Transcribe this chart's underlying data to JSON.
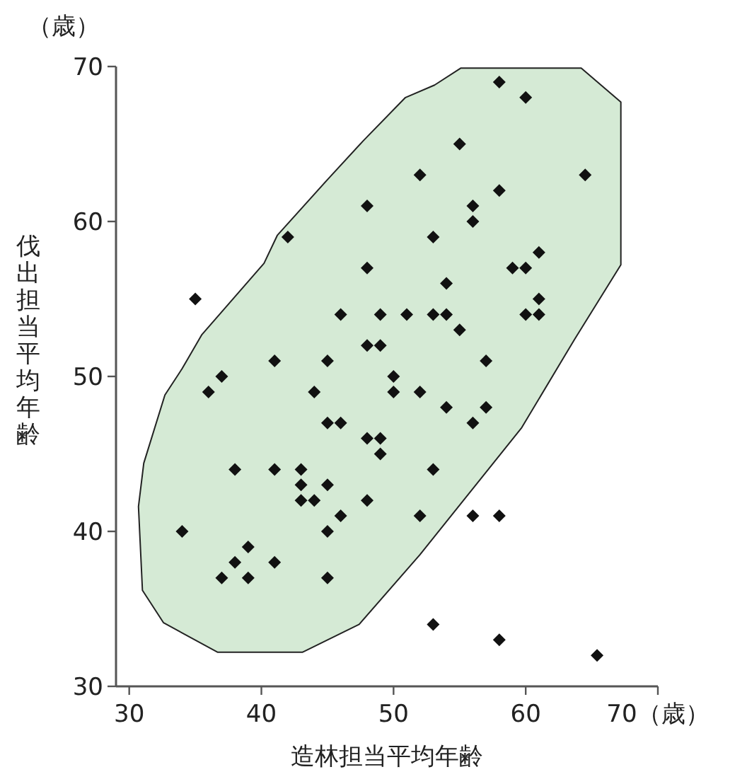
{
  "chart_data": {
    "type": "scatter",
    "xlabel": "造林担当平均年齢",
    "ylabel": "伐出担当平均年齢",
    "annotations": [
      "（歳）"
    ],
    "xlim": [
      29,
      70
    ],
    "xticks": [
      30,
      40,
      50,
      60,
      {
        "value": 70,
        "label": "70（歳）"
      }
    ],
    "ylim": [
      30,
      70
    ],
    "yticks": [
      30,
      40,
      50,
      60,
      70
    ],
    "grid": false,
    "series": [
      {
        "type": "area",
        "color": "#d5ead5",
        "x": [
          55.1,
          64.2,
          67.2,
          67.2,
          63.7,
          59.7,
          52.0,
          47.4,
          43.1,
          36.7,
          32.6,
          31.0,
          30.7,
          31.1,
          32.7,
          34.0,
          35.5,
          40.2,
          41.2,
          45.0,
          47.7,
          50.9,
          53.1
        ],
        "values": [
          69.9,
          69.9,
          67.7,
          57.2,
          52.4,
          46.7,
          38.5,
          34.0,
          32.2,
          32.2,
          34.1,
          36.2,
          41.6,
          44.4,
          48.8,
          50.5,
          52.7,
          57.3,
          59.1,
          62.7,
          65.2,
          68.0,
          68.8
        ]
      },
      {
        "marker": "diamond",
        "color": "#111111",
        "x": [
          58,
          60,
          55,
          52,
          64.5,
          58,
          48,
          56,
          56,
          42,
          53,
          61,
          48,
          59,
          60,
          54,
          35,
          61,
          46,
          49,
          51,
          53,
          54,
          60,
          61,
          55,
          48,
          49,
          41,
          45,
          57,
          36,
          37,
          44,
          50,
          50,
          52,
          54,
          57,
          45,
          46,
          56,
          48,
          49,
          49,
          38,
          41,
          43,
          53,
          43,
          45,
          43,
          44,
          48,
          46,
          52,
          56,
          58,
          34,
          45,
          39,
          38,
          41,
          37,
          39,
          45,
          53,
          58,
          65.4
        ],
        "values": [
          69,
          68,
          65,
          63,
          63,
          62,
          61,
          61,
          60,
          59,
          59,
          58,
          57,
          57,
          57,
          56,
          55,
          55,
          54,
          54,
          54,
          54,
          54,
          54,
          54,
          53,
          52,
          52,
          51,
          51,
          51,
          49,
          50,
          49,
          50,
          49,
          49,
          48,
          48,
          47,
          47,
          47,
          46,
          46,
          45,
          44,
          44,
          44,
          44,
          43,
          43,
          42,
          42,
          42,
          41,
          41,
          41,
          41,
          40,
          40,
          39,
          38,
          38,
          37,
          37,
          37,
          34,
          33,
          32
        ]
      }
    ]
  }
}
